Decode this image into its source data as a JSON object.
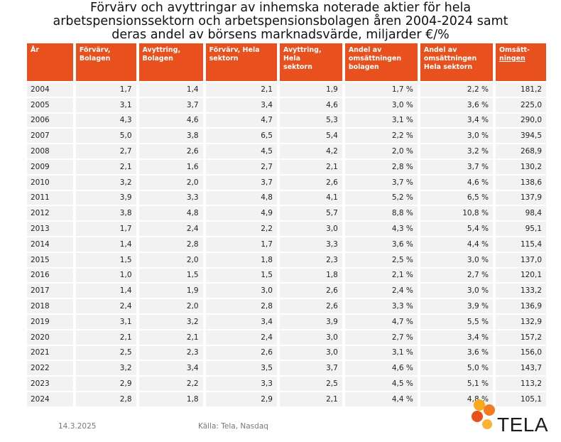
{
  "title": {
    "line1": "Förvärv och avyttringar av inhemska noterade aktier för hela",
    "line2": "arbetspensionssektorn och arbetspensionsbolagen åren 2004-2024 samt",
    "line3": "deras andel av börsens marknadsvärde, miljarder €/%"
  },
  "headers": [
    [
      "År"
    ],
    [
      "Förvärv,",
      "Bolagen"
    ],
    [
      "Avyttring,",
      "Bolagen"
    ],
    [
      "Förvärv,      Hela",
      "sektorn"
    ],
    [
      "Avyttring, Hela",
      "sektorn"
    ],
    [
      "Andel av",
      "omsättningen",
      "bolagen"
    ],
    [
      "Andel av",
      "omsättningen",
      "Hela sektorn"
    ],
    [
      "Omsätt-",
      "ningen"
    ]
  ],
  "rows": [
    [
      "2004",
      "1,7",
      "1,4",
      "2,1",
      "1,9",
      "1,7 %",
      "2,2 %",
      "181,2"
    ],
    [
      "2005",
      "3,1",
      "3,7",
      "3,4",
      "4,6",
      "3,0 %",
      "3,6 %",
      "225,0"
    ],
    [
      "2006",
      "4,3",
      "4,6",
      "4,7",
      "5,3",
      "3,1 %",
      "3,4 %",
      "290,0"
    ],
    [
      "2007",
      "5,0",
      "3,8",
      "6,5",
      "5,4",
      "2,2 %",
      "3,0 %",
      "394,5"
    ],
    [
      "2008",
      "2,7",
      "2,6",
      "4,5",
      "4,2",
      "2,0 %",
      "3,2 %",
      "268,9"
    ],
    [
      "2009",
      "2,1",
      "1,6",
      "2,7",
      "2,1",
      "2,8 %",
      "3,7 %",
      "130,2"
    ],
    [
      "2010",
      "3,2",
      "2,0",
      "3,7",
      "2,6",
      "3,7 %",
      "4,6 %",
      "138,6"
    ],
    [
      "2011",
      "3,9",
      "3,3",
      "4,8",
      "4,1",
      "5,2 %",
      "6,5 %",
      "137,9"
    ],
    [
      "2012",
      "3,8",
      "4,8",
      "4,9",
      "5,7",
      "8,8 %",
      "10,8 %",
      "98,4"
    ],
    [
      "2013",
      "1,7",
      "2,4",
      "2,2",
      "3,0",
      "4,3 %",
      "5,4 %",
      "95,1"
    ],
    [
      "2014",
      "1,4",
      "2,8",
      "1,7",
      "3,3",
      "3,6 %",
      "4,4 %",
      "115,4"
    ],
    [
      "2015",
      "1,5",
      "2,0",
      "1,8",
      "2,3",
      "2,5 %",
      "3,0 %",
      "137,0"
    ],
    [
      "2016",
      "1,0",
      "1,5",
      "1,5",
      "1,8",
      "2,1 %",
      "2,7 %",
      "120,1"
    ],
    [
      "2017",
      "1,4",
      "1,9",
      "3,0",
      "2,6",
      "2,4 %",
      "3,0 %",
      "133,2"
    ],
    [
      "2018",
      "2,4",
      "2,0",
      "2,8",
      "2,6",
      "3,3 %",
      "3,9 %",
      "136,9"
    ],
    [
      "2019",
      "3,1",
      "3,2",
      "3,4",
      "3,9",
      "4,7 %",
      "5,5 %",
      "132,9"
    ],
    [
      "2020",
      "2,1",
      "2,1",
      "2,4",
      "3,0",
      "2,7 %",
      "3,4 %",
      "157,2"
    ],
    [
      "2021",
      "2,5",
      "2,3",
      "2,6",
      "3,0",
      "3,1 %",
      "3,6 %",
      "156,0"
    ],
    [
      "2022",
      "3,2",
      "3,4",
      "3,5",
      "3,7",
      "4,6 %",
      "5,0 %",
      "143,7"
    ],
    [
      "2023",
      "2,9",
      "2,2",
      "3,3",
      "2,5",
      "4,5 %",
      "5,1 %",
      "113,2"
    ],
    [
      "2024",
      "2,8",
      "1,8",
      "2,9",
      "2,1",
      "4,4 %",
      "4,8 %",
      "105,1"
    ]
  ],
  "footer": {
    "date": "14.3.2025",
    "source": "Källa: Tela, Nasdaq"
  },
  "logo": {
    "text": "TELA",
    "colors": [
      "#f7a81b",
      "#e8501e",
      "#f47b20"
    ]
  },
  "colors": {
    "header_bg": "#e8501e",
    "cell_bg": "#f2f2f2"
  }
}
